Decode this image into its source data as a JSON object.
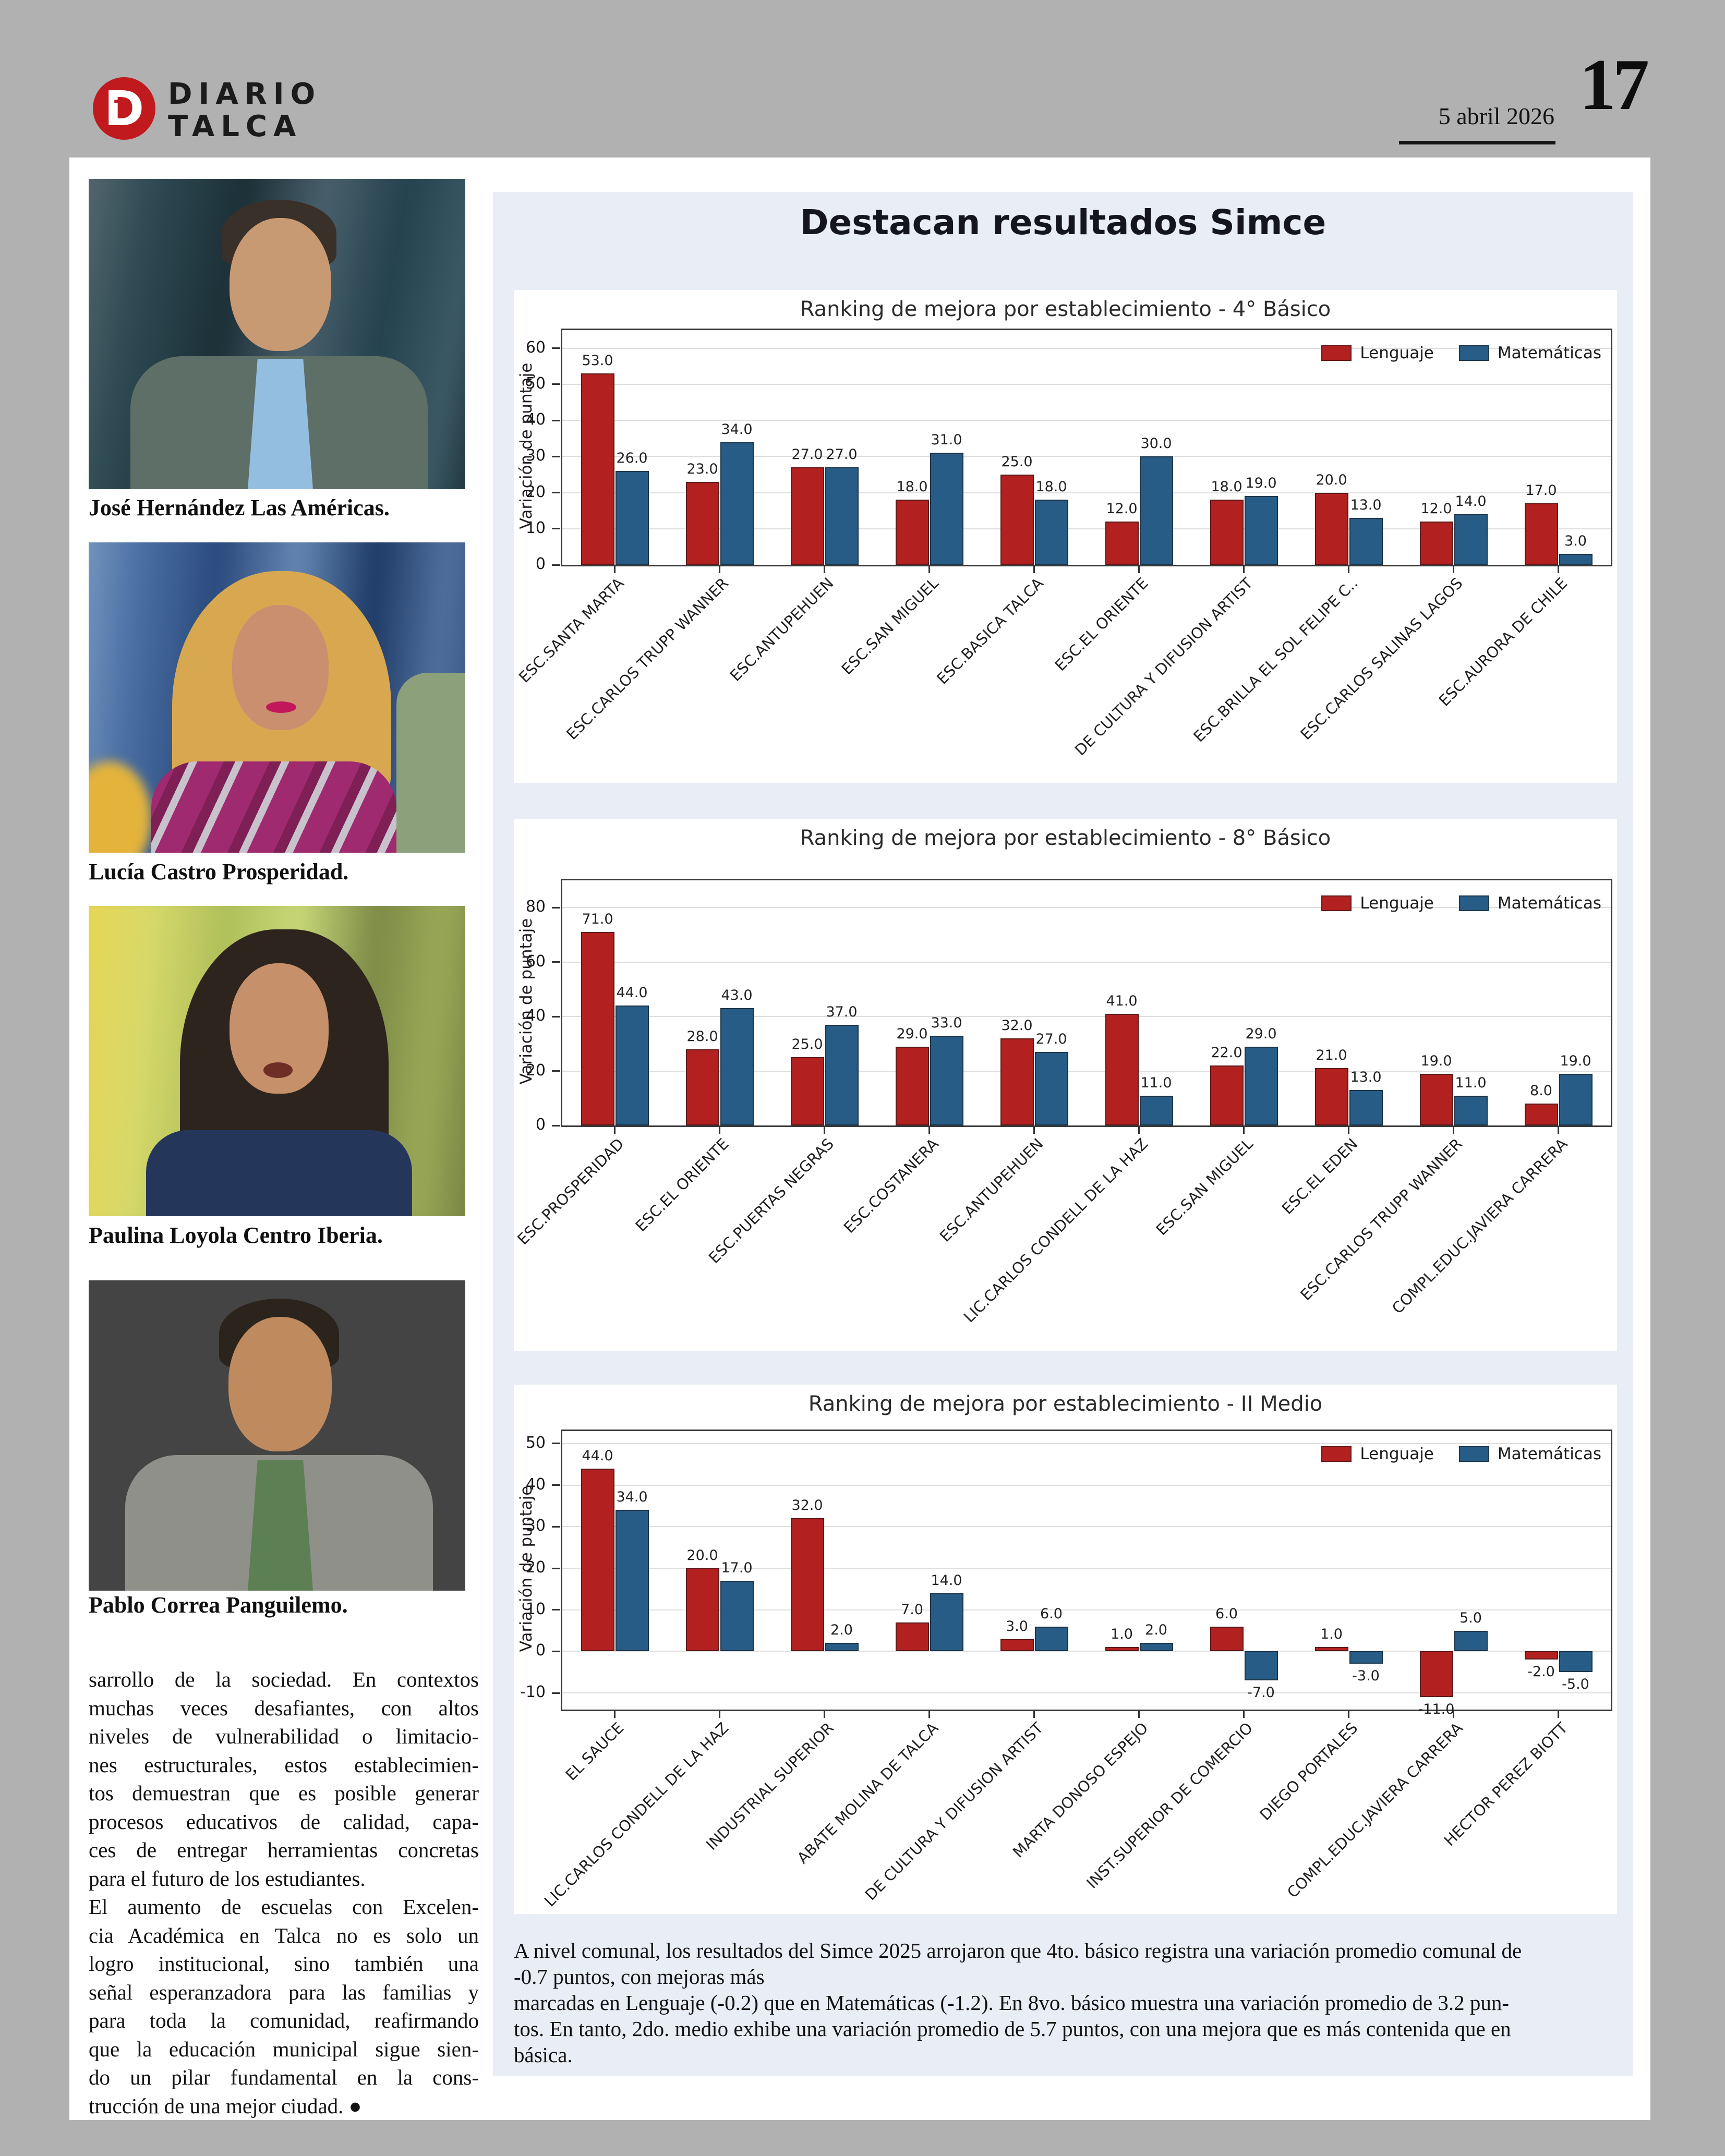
{
  "header": {
    "brand_line1": "DIARIO",
    "brand_line2": "TALCA",
    "logo_letter": "D",
    "logo_inner_letter": "T",
    "date": "5 abril 2026",
    "page_number": "17",
    "brand_color": "#c11a1e"
  },
  "left_column": {
    "photos": [
      {
        "caption": "José Hernández Las Américas."
      },
      {
        "caption": "Lucía Castro Prosperidad."
      },
      {
        "caption": "Paulina Loyola Centro Iberia."
      },
      {
        "caption": "Pablo Correa Panguilemo."
      }
    ],
    "article": {
      "para1_lines": [
        "sarrollo de la sociedad. En contextos",
        "muchas veces desafiantes, con altos",
        "niveles de vulnerabilidad o limitacio-",
        "nes estructurales, estos establecimien-",
        "tos demuestran que es posible generar",
        "procesos educativos de calidad, capa-",
        "ces de entregar herramientas concretas",
        "para el futuro de los estudiantes."
      ],
      "para2_lines": [
        "El aumento de escuelas con Excelen-",
        "cia Académica en Talca no es solo un",
        "logro institucional, sino también una",
        "señal esperanzadora para las familias y",
        "para toda la comunidad, reafirmando",
        "que la educación municipal sigue sien-",
        "do un pilar fundamental en la cons-",
        "trucción de una mejor ciudad. ●"
      ]
    }
  },
  "main": {
    "title": "Destacan resultados Simce",
    "footer_lines": [
      "A nivel comunal, los resultados del Simce 2025 arrojaron que 4to. básico registra una variación promedio comunal de",
      "-0.7 puntos, con mejoras más",
      "marcadas en Lenguaje (-0.2) que en Matemáticas (-1.2). En 8vo. básico muestra una variación promedio de 3.2 pun-",
      "tos. En tanto,  2do. medio exhibe una variación promedio de 5.7 puntos, con una mejora que es más contenida que en",
      "básica."
    ]
  },
  "chart_data": [
    {
      "type": "bar",
      "title": "Ranking de mejora por establecimiento - 4° Básico",
      "ylabel": "Variación de puntaje",
      "ylim": [
        0,
        65
      ],
      "yticks": [
        0,
        10,
        20,
        30,
        40,
        50,
        60
      ],
      "grid": true,
      "legend_position": "upper right",
      "categories": [
        "ESC.SANTA  MARTA",
        "ESC.CARLOS TRUPP WANNER",
        "ESC.ANTUPEHUEN",
        "ESC.SAN MIGUEL",
        "ESC.BASICA TALCA",
        "ESC.EL ORIENTE",
        "DE CULTURA Y DIFUSION ARTIST",
        "ESC.BRILLA EL SOL FELIPE C..",
        "ESC.CARLOS SALINAS LAGOS",
        "ESC.AURORA DE CHILE"
      ],
      "series": [
        {
          "name": "Lenguaje",
          "color": "#b22120",
          "values": [
            53.0,
            23.0,
            27.0,
            18.0,
            25.0,
            12.0,
            18.0,
            20.0,
            12.0,
            17.0
          ]
        },
        {
          "name": "Matemáticas",
          "color": "#275c86",
          "values": [
            26.0,
            34.0,
            27.0,
            31.0,
            18.0,
            30.0,
            19.0,
            13.0,
            14.0,
            3.0
          ]
        }
      ]
    },
    {
      "type": "bar",
      "title": "Ranking de mejora por establecimiento - 8° Básico",
      "ylabel": "Variación de puntaje",
      "ylim": [
        0,
        90
      ],
      "yticks": [
        0,
        20,
        40,
        60,
        80
      ],
      "grid": true,
      "legend_position": "upper right",
      "categories": [
        "ESC.PROSPERIDAD",
        "ESC.EL ORIENTE",
        "ESC.PUERTAS NEGRAS",
        "ESC.COSTANERA",
        "ESC.ANTUPEHUEN",
        "LIC.CARLOS CONDELL DE LA HAZ",
        "ESC.SAN MIGUEL",
        "ESC.EL EDEN",
        "ESC.CARLOS TRUPP WANNER",
        "COMPL.EDUC.JAVIERA CARRERA"
      ],
      "series": [
        {
          "name": "Lenguaje",
          "color": "#b22120",
          "values": [
            71.0,
            28.0,
            25.0,
            29.0,
            32.0,
            41.0,
            22.0,
            21.0,
            19.0,
            8.0
          ]
        },
        {
          "name": "Matemáticas",
          "color": "#275c86",
          "values": [
            44.0,
            43.0,
            37.0,
            33.0,
            27.0,
            11.0,
            29.0,
            13.0,
            11.0,
            19.0
          ]
        }
      ]
    },
    {
      "type": "bar",
      "title": "Ranking de mejora por establecimiento - II Medio",
      "ylabel": "Variación de puntaje",
      "ylim": [
        -14,
        53
      ],
      "yticks": [
        -10,
        0,
        10,
        20,
        30,
        40,
        50
      ],
      "grid": true,
      "legend_position": "upper right",
      "categories": [
        "EL SAUCE",
        "LIC.CARLOS CONDELL DE LA HAZ",
        "INDUSTRIAL SUPERIOR",
        "ABATE MOLINA DE TALCA",
        "DE CULTURA Y DIFUSION ARTIST",
        "MARTA DONOSO ESPEJO",
        "INST.SUPERIOR DE COMERCIO",
        "DIEGO PORTALES",
        "COMPL.EDUC.JAVIERA CARRERA",
        "HECTOR PEREZ BIOTT"
      ],
      "series": [
        {
          "name": "Lenguaje",
          "color": "#b22120",
          "values": [
            44.0,
            20.0,
            32.0,
            7.0,
            3.0,
            1.0,
            6.0,
            1.0,
            -11.0,
            -2.0
          ]
        },
        {
          "name": "Matemáticas",
          "color": "#275c86",
          "values": [
            34.0,
            17.0,
            2.0,
            14.0,
            6.0,
            2.0,
            -7.0,
            -3.0,
            5.0,
            -5.0
          ]
        }
      ]
    }
  ]
}
